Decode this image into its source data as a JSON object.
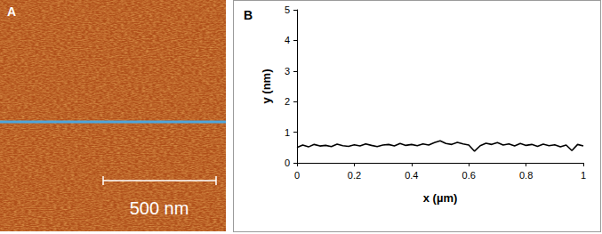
{
  "image_panel": {
    "title": "A",
    "scale_bar": "500 nm"
  },
  "chart_data": {
    "type": "line",
    "title": "B",
    "x_label": "x (µm)",
    "y_label": "y (nm)",
    "x": [
      0,
      0.02,
      0.04,
      0.06,
      0.08,
      0.1,
      0.12,
      0.14,
      0.16,
      0.18,
      0.2,
      0.22,
      0.24,
      0.26,
      0.28,
      0.3,
      0.32,
      0.34,
      0.36,
      0.38,
      0.4,
      0.42,
      0.44,
      0.46,
      0.48,
      0.5,
      0.52,
      0.54,
      0.56,
      0.58,
      0.6,
      0.62,
      0.64,
      0.66,
      0.68,
      0.7,
      0.72,
      0.74,
      0.76,
      0.78,
      0.8,
      0.82,
      0.84,
      0.86,
      0.88,
      0.9,
      0.92,
      0.94,
      0.96,
      0.98,
      1
    ],
    "values": [
      0.5,
      0.58,
      0.52,
      0.6,
      0.55,
      0.57,
      0.53,
      0.61,
      0.56,
      0.54,
      0.59,
      0.55,
      0.62,
      0.57,
      0.53,
      0.58,
      0.6,
      0.55,
      0.63,
      0.57,
      0.6,
      0.56,
      0.62,
      0.58,
      0.66,
      0.72,
      0.63,
      0.6,
      0.67,
      0.62,
      0.58,
      0.38,
      0.56,
      0.64,
      0.6,
      0.66,
      0.58,
      0.62,
      0.55,
      0.63,
      0.57,
      0.6,
      0.54,
      0.61,
      0.56,
      0.59,
      0.52,
      0.58,
      0.4,
      0.6,
      0.55
    ],
    "color": "#000000",
    "xlim": [
      0,
      1
    ],
    "xticks": [
      0,
      0.2,
      0.4,
      0.6,
      0.8,
      1
    ],
    "ylim": [
      0,
      5
    ],
    "yticks": [
      0,
      1,
      2,
      3,
      4,
      5
    ],
    "grid": false
  }
}
